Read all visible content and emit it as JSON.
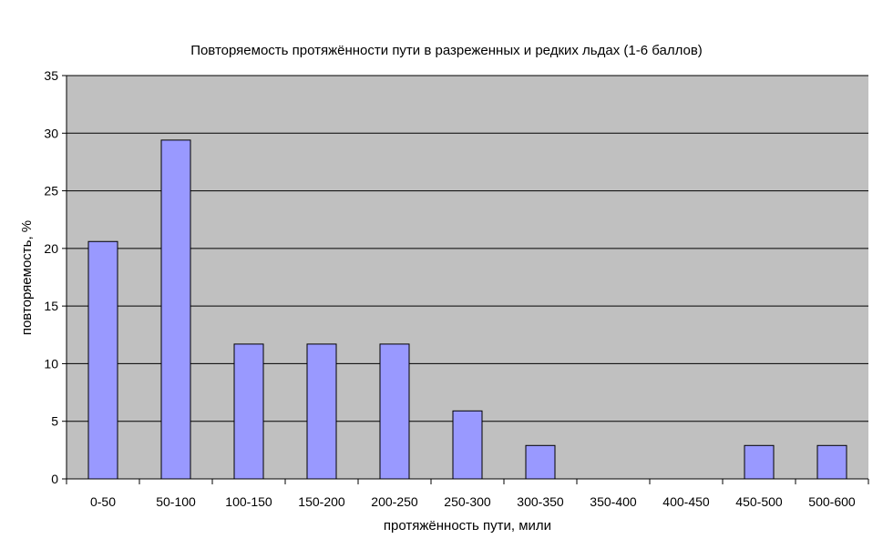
{
  "chart_data": {
    "type": "bar",
    "title": "Повторяемость протяжённости пути в разреженных и редких льдах (1-6 баллов)",
    "xlabel": "протяжённость пути, мили",
    "ylabel": "повторяемость, %",
    "categories": [
      "0-50",
      "50-100",
      "100-150",
      "150-200",
      "200-250",
      "250-300",
      "300-350",
      "350-400",
      "400-450",
      "450-500",
      "500-600"
    ],
    "values": [
      20.6,
      29.4,
      11.7,
      11.7,
      11.7,
      5.9,
      2.9,
      0,
      0,
      2.9,
      2.9
    ],
    "ylim": [
      0,
      35
    ],
    "yticks": [
      "0",
      "5",
      "10",
      "15",
      "20",
      "25",
      "30",
      "35"
    ],
    "grid": true,
    "colors": {
      "plot_background": "#c0c0c0",
      "bar_fill": "#9999ff",
      "bar_stroke": "#000000",
      "grid": "#000000"
    }
  }
}
